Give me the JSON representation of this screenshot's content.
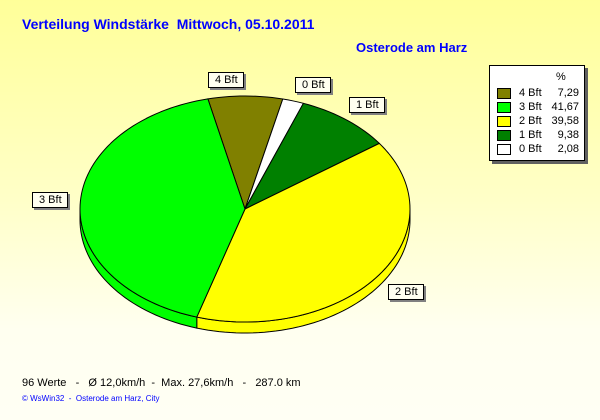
{
  "chart_data": {
    "type": "pie",
    "title": "Verteilung Windstärke  Mittwoch, 05.10.2011",
    "subtitle": "Osterode am Harz",
    "legend_header": "%",
    "legend_placement": "top-right",
    "start_angle_deg": -13,
    "slices": [
      {
        "label": "4 Bft",
        "value": 7.29,
        "value_text": "7,29",
        "color": "#808000"
      },
      {
        "label": "0 Bft",
        "value": 2.08,
        "value_text": "2,08",
        "color": "#FFFFFF"
      },
      {
        "label": "1 Bft",
        "value": 9.38,
        "value_text": "9,38",
        "color": "#008000"
      },
      {
        "label": "2 Bft",
        "value": 39.58,
        "value_text": "39,58",
        "color": "#FFFF00"
      },
      {
        "label": "3 Bft",
        "value": 41.67,
        "value_text": "41,67",
        "color": "#00FF00"
      }
    ],
    "legend_order": [
      0,
      4,
      3,
      2,
      1
    ]
  },
  "footer": {
    "stats": "96 Werte   -   Ø 12,0km/h  -  Max. 27,6km/h   -   287.0 km",
    "credit": "© WsWin32  -  Osterode am Harz, City"
  }
}
